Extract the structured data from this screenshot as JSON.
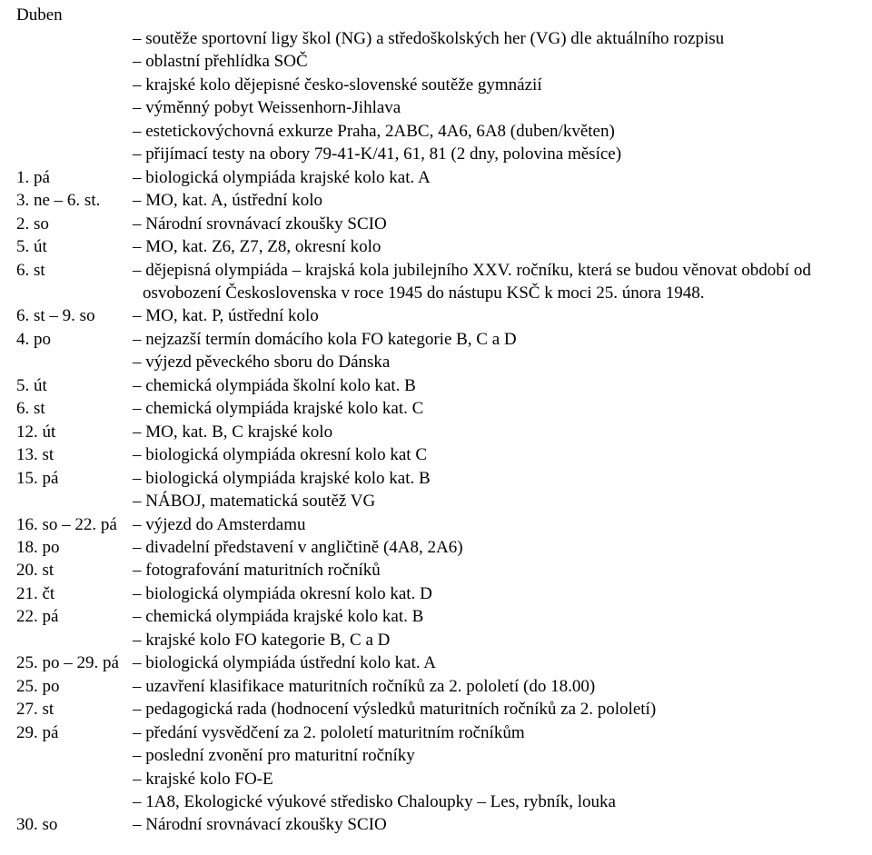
{
  "title": "Duben",
  "rows": [
    {
      "date": "",
      "text": "soutěže sportovní ligy škol (NG) a středoškolských her (VG) dle aktuálního rozpisu"
    },
    {
      "date": "",
      "text": "oblastní přehlídka SOČ"
    },
    {
      "date": "",
      "text": "krajské kolo dějepisné česko-slovenské soutěže gymnázií"
    },
    {
      "date": "",
      "text": "výměnný pobyt Weissenhorn-Jihlava"
    },
    {
      "date": "",
      "text": "estetickovýchovná exkurze Praha, 2ABC, 4A6, 6A8 (duben/květen)"
    },
    {
      "date": "",
      "text": "přijímací testy na obory 79-41-K/41, 61, 81 (2 dny, polovina měsíce)"
    },
    {
      "date": "1. pá",
      "text": "biologická olympiáda krajské kolo kat. A"
    },
    {
      "date": "3. ne – 6. st.",
      "text": "MO, kat. A, ústřední kolo"
    },
    {
      "date": "2. so",
      "text": "Národní srovnávací zkoušky SCIO"
    },
    {
      "date": "5. út",
      "text": "MO, kat. Z6, Z7, Z8, okresní kolo"
    },
    {
      "date": "6. st",
      "text": "dějepisná olympiáda – krajská kola jubilejního XXV. ročníku, která se budou věnovat období od osvobození Československa v roce 1945 do nástupu KSČ k moci 25. února 1948."
    },
    {
      "date": "6. st – 9. so",
      "text": "MO, kat. P, ústřední kolo"
    },
    {
      "date": "4. po",
      "text": "nejzazší termín domácího kola FO kategorie B, C a D"
    },
    {
      "date": "",
      "text": "výjezd pěveckého sboru do Dánska"
    },
    {
      "date": "5. út",
      "text": "chemická olympiáda školní kolo kat. B"
    },
    {
      "date": "6. st",
      "text": "chemická olympiáda krajské kolo kat. C"
    },
    {
      "date": "12. út",
      "text": "MO, kat. B, C krajské kolo"
    },
    {
      "date": "13. st",
      "text": "biologická olympiáda okresní kolo kat C"
    },
    {
      "date": "15. pá",
      "text": "biologická olympiáda krajské kolo kat. B"
    },
    {
      "date": "",
      "text": "NÁBOJ, matematická soutěž VG"
    },
    {
      "date": "16. so – 22. pá",
      "text": "výjezd do Amsterdamu"
    },
    {
      "date": "18. po",
      "text": "divadelní představení v angličtině (4A8, 2A6)"
    },
    {
      "date": "20. st",
      "text": "fotografování maturitních ročníků"
    },
    {
      "date": "21. čt",
      "text": "biologická olympiáda okresní kolo kat. D"
    },
    {
      "date": "22. pá",
      "text": "chemická olympiáda krajské kolo kat. B"
    },
    {
      "date": "",
      "text": "krajské kolo FO kategorie B, C a D"
    },
    {
      "date": "25. po – 29. pá",
      "text": "biologická olympiáda ústřední kolo kat. A"
    },
    {
      "date": "25. po",
      "text": "uzavření klasifikace maturitních ročníků za 2. pololetí (do 18.00)"
    },
    {
      "date": "27. st",
      "text": "pedagogická rada (hodnocení výsledků maturitních ročníků za 2. pololetí)"
    },
    {
      "date": "29. pá",
      "text": "předání vysvědčení za 2. pololetí maturitním ročníkům"
    },
    {
      "date": "",
      "text": "poslední zvonění pro maturitní ročníky"
    },
    {
      "date": "",
      "text": "krajské kolo FO-E"
    },
    {
      "date": "",
      "text": "1A8, Ekologické výukové středisko Chaloupky – Les, rybník, louka"
    },
    {
      "date": "30. so",
      "text": "Národní srovnávací zkoušky SCIO"
    }
  ]
}
